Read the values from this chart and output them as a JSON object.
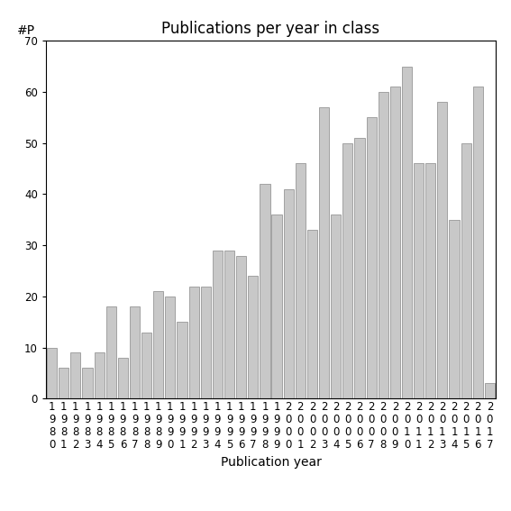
{
  "title": "Publications per year in class",
  "xlabel": "Publication year",
  "ylabel": "#P",
  "ylim": [
    0,
    70
  ],
  "yticks": [
    0,
    10,
    20,
    30,
    40,
    50,
    60,
    70
  ],
  "years": [
    "1980",
    "1981",
    "1982",
    "1983",
    "1984",
    "1985",
    "1986",
    "1987",
    "1988",
    "1989",
    "1990",
    "1991",
    "1992",
    "1993",
    "1994",
    "1995",
    "1996",
    "1997",
    "1998",
    "1999",
    "2000",
    "2001",
    "2002",
    "2003",
    "2004",
    "2005",
    "2006",
    "2007",
    "2008",
    "2009",
    "2010",
    "2011",
    "2012",
    "2013",
    "2014",
    "2015",
    "2016",
    "2017"
  ],
  "values": [
    10,
    6,
    9,
    6,
    9,
    18,
    8,
    18,
    13,
    21,
    20,
    15,
    22,
    22,
    29,
    29,
    28,
    24,
    42,
    36,
    41,
    46,
    33,
    57,
    36,
    50,
    51,
    55,
    60,
    61,
    65,
    46,
    46,
    58,
    35,
    50,
    61,
    3
  ],
  "bar_color": "#c8c8c8",
  "bar_edgecolor": "#888888",
  "bg_color": "#ffffff",
  "title_fontsize": 12,
  "label_fontsize": 10,
  "tick_fontsize": 8.5
}
